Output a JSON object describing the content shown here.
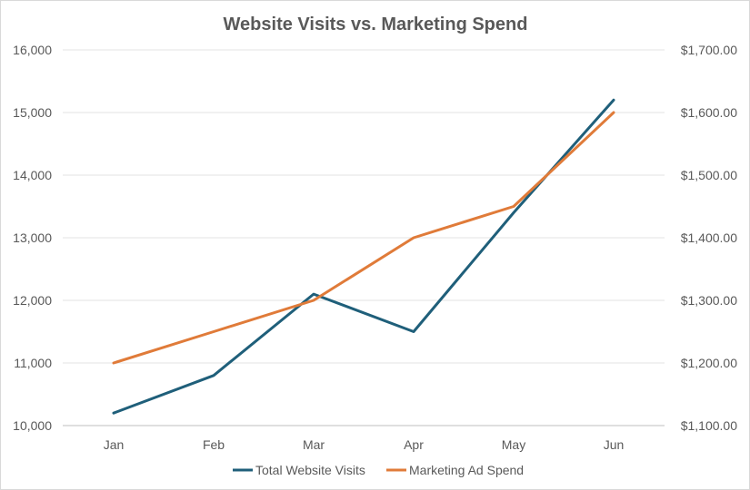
{
  "chart_data": {
    "type": "line",
    "title": "Website Visits vs. Marketing Spend",
    "categories": [
      "Jan",
      "Feb",
      "Mar",
      "Apr",
      "May",
      "Jun"
    ],
    "series": [
      {
        "name": "Total Website Visits",
        "axis": "left",
        "color": "#1f5f7a",
        "values": [
          10200,
          10800,
          12100,
          11500,
          13400,
          15200
        ]
      },
      {
        "name": "Marketing Ad Spend",
        "axis": "right",
        "color": "#e07b39",
        "values": [
          1200,
          1250,
          1300,
          1400,
          1450,
          1600
        ]
      }
    ],
    "y_left": {
      "min": 10000,
      "max": 16000,
      "ticks": [
        "10,000",
        "11,000",
        "12,000",
        "13,000",
        "14,000",
        "15,000",
        "16,000"
      ]
    },
    "y_right": {
      "min": 1100,
      "max": 1700,
      "ticks": [
        "$1,100.00",
        "$1,200.00",
        "$1,300.00",
        "$1,400.00",
        "$1,500.00",
        "$1,600.00",
        "$1,700.00"
      ]
    },
    "grid": true,
    "legend_position": "bottom"
  }
}
